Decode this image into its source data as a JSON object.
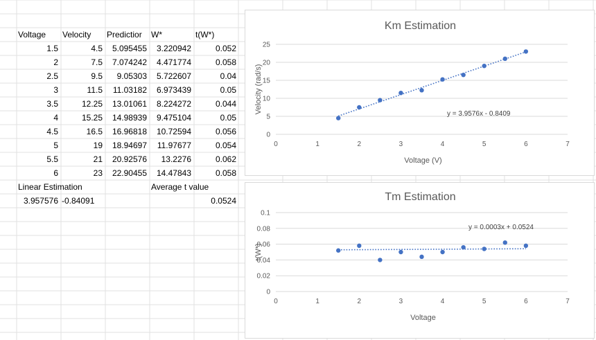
{
  "sheet": {
    "header_row": [
      {
        "text": "Voltage",
        "align": "l"
      },
      {
        "text": "Velocity",
        "align": "l"
      },
      {
        "text": "Predictior",
        "align": "l"
      },
      {
        "text": "W*",
        "align": "l"
      },
      {
        "text": "t(W*)",
        "align": "l"
      }
    ],
    "rows": [
      [
        "1.5",
        "4.5",
        "5.095455",
        "3.220942",
        "0.052"
      ],
      [
        "2",
        "7.5",
        "7.074242",
        "4.471774",
        "0.058"
      ],
      [
        "2.5",
        "9.5",
        "9.05303",
        "5.722607",
        "0.04"
      ],
      [
        "3",
        "11.5",
        "11.03182",
        "6.973439",
        "0.05"
      ],
      [
        "3.5",
        "12.25",
        "13.01061",
        "8.224272",
        "0.044"
      ],
      [
        "4",
        "15.25",
        "14.98939",
        "9.475104",
        "0.05"
      ],
      [
        "4.5",
        "16.5",
        "16.96818",
        "10.72594",
        "0.056"
      ],
      [
        "5",
        "19",
        "18.94697",
        "11.97677",
        "0.054"
      ],
      [
        "5.5",
        "21",
        "20.92576",
        "13.2276",
        "0.062"
      ],
      [
        "6",
        "23",
        "22.90455",
        "14.47843",
        "0.058"
      ]
    ],
    "linear_estimation_label": "Linear Estimation",
    "average_t_label": "Average t value",
    "slope": "3.957576",
    "intercept": "-0.84091",
    "average_t": "0.0524"
  },
  "chart_data": [
    {
      "type": "scatter",
      "title": "Km Estimation",
      "xlabel": "Voltage (V)",
      "ylabel": "Velocity (rad/s)",
      "xlim": [
        0,
        7
      ],
      "ylim": [
        0,
        25
      ],
      "xticks": [
        0,
        1,
        2,
        3,
        4,
        5,
        6,
        7
      ],
      "yticks": [
        0,
        5,
        10,
        15,
        20,
        25
      ],
      "x": [
        1.5,
        2,
        2.5,
        3,
        3.5,
        4,
        4.5,
        5,
        5.5,
        6
      ],
      "y": [
        4.5,
        7.5,
        9.5,
        11.5,
        12.25,
        15.25,
        16.5,
        19,
        21,
        23
      ],
      "trendline": {
        "slope": 3.9576,
        "intercept": -0.8409,
        "label": "y = 3.9576x - 0.8409"
      },
      "grid": true,
      "legend": "none",
      "color": "#4472C4"
    },
    {
      "type": "scatter",
      "title": "Tm Estimation",
      "xlabel": "Voltage",
      "ylabel": "t(W*)",
      "xlim": [
        0,
        7
      ],
      "ylim": [
        0,
        0.1
      ],
      "xticks": [
        0,
        1,
        2,
        3,
        4,
        5,
        6,
        7
      ],
      "yticks": [
        0,
        0.02,
        0.04,
        0.06,
        0.08,
        0.1
      ],
      "ytick_labels": [
        "0",
        "0.02",
        "0.04",
        "0.06",
        "0.08",
        "0.1"
      ],
      "x": [
        1.5,
        2,
        2.5,
        3,
        3.5,
        4,
        4.5,
        5,
        5.5,
        6
      ],
      "y": [
        0.052,
        0.058,
        0.04,
        0.05,
        0.044,
        0.05,
        0.056,
        0.054,
        0.062,
        0.058
      ],
      "trendline": {
        "slope": 0.0003,
        "intercept": 0.0524,
        "label": "y = 0.0003x + 0.0524"
      },
      "grid": true,
      "legend": "none",
      "color": "#4472C4"
    }
  ]
}
